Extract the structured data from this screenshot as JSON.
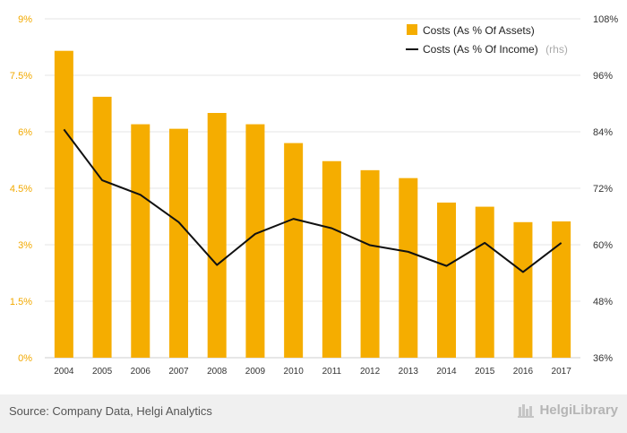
{
  "chart_data": {
    "type": "bar",
    "categories": [
      "2004",
      "2005",
      "2006",
      "2007",
      "2008",
      "2009",
      "2010",
      "2011",
      "2012",
      "2013",
      "2014",
      "2015",
      "2016",
      "2017"
    ],
    "series": [
      {
        "name": "Costs (As % Of Assets)",
        "type": "bar",
        "axis": "left",
        "color": "#f5ad00",
        "values": [
          8.15,
          6.93,
          6.2,
          6.08,
          6.5,
          6.2,
          5.7,
          5.22,
          4.98,
          4.77,
          4.12,
          4.01,
          3.6,
          3.62
        ]
      },
      {
        "name": "Costs (As % Of Income)",
        "note": "(rhs)",
        "type": "line",
        "axis": "right",
        "color": "#111111",
        "values": [
          84.5,
          73.7,
          70.6,
          64.8,
          55.7,
          62.3,
          65.5,
          63.5,
          59.9,
          58.5,
          55.5,
          60.4,
          54.2,
          60.4
        ]
      }
    ],
    "y_left": {
      "min": 0,
      "max": 9,
      "ticks": [
        "0%",
        "1.5%",
        "3%",
        "4.5%",
        "6%",
        "7.5%",
        "9%"
      ]
    },
    "y_right": {
      "min": 36,
      "max": 108,
      "ticks": [
        "36%",
        "48%",
        "60%",
        "72%",
        "84%",
        "96%",
        "108%"
      ]
    },
    "grid": true,
    "legend_position": "top-right"
  },
  "footer": {
    "source": "Source: Company Data, Helgi Analytics",
    "logo": "HelgiLibrary"
  }
}
